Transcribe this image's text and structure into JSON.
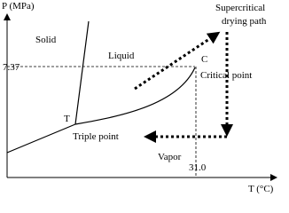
{
  "axes": {
    "y_label": "P (MPa)",
    "x_label": "T (°C)",
    "y_marker": "7.37",
    "x_marker": "31.0"
  },
  "regions": {
    "solid": "Solid",
    "liquid": "Liquid",
    "vapor": "Vapor"
  },
  "points": {
    "triple_symbol": "T",
    "triple_label": "Triple point",
    "critical_symbol": "C",
    "critical_label": "Critical point"
  },
  "path_label": [
    "Supercritical",
    "drying path"
  ]
}
